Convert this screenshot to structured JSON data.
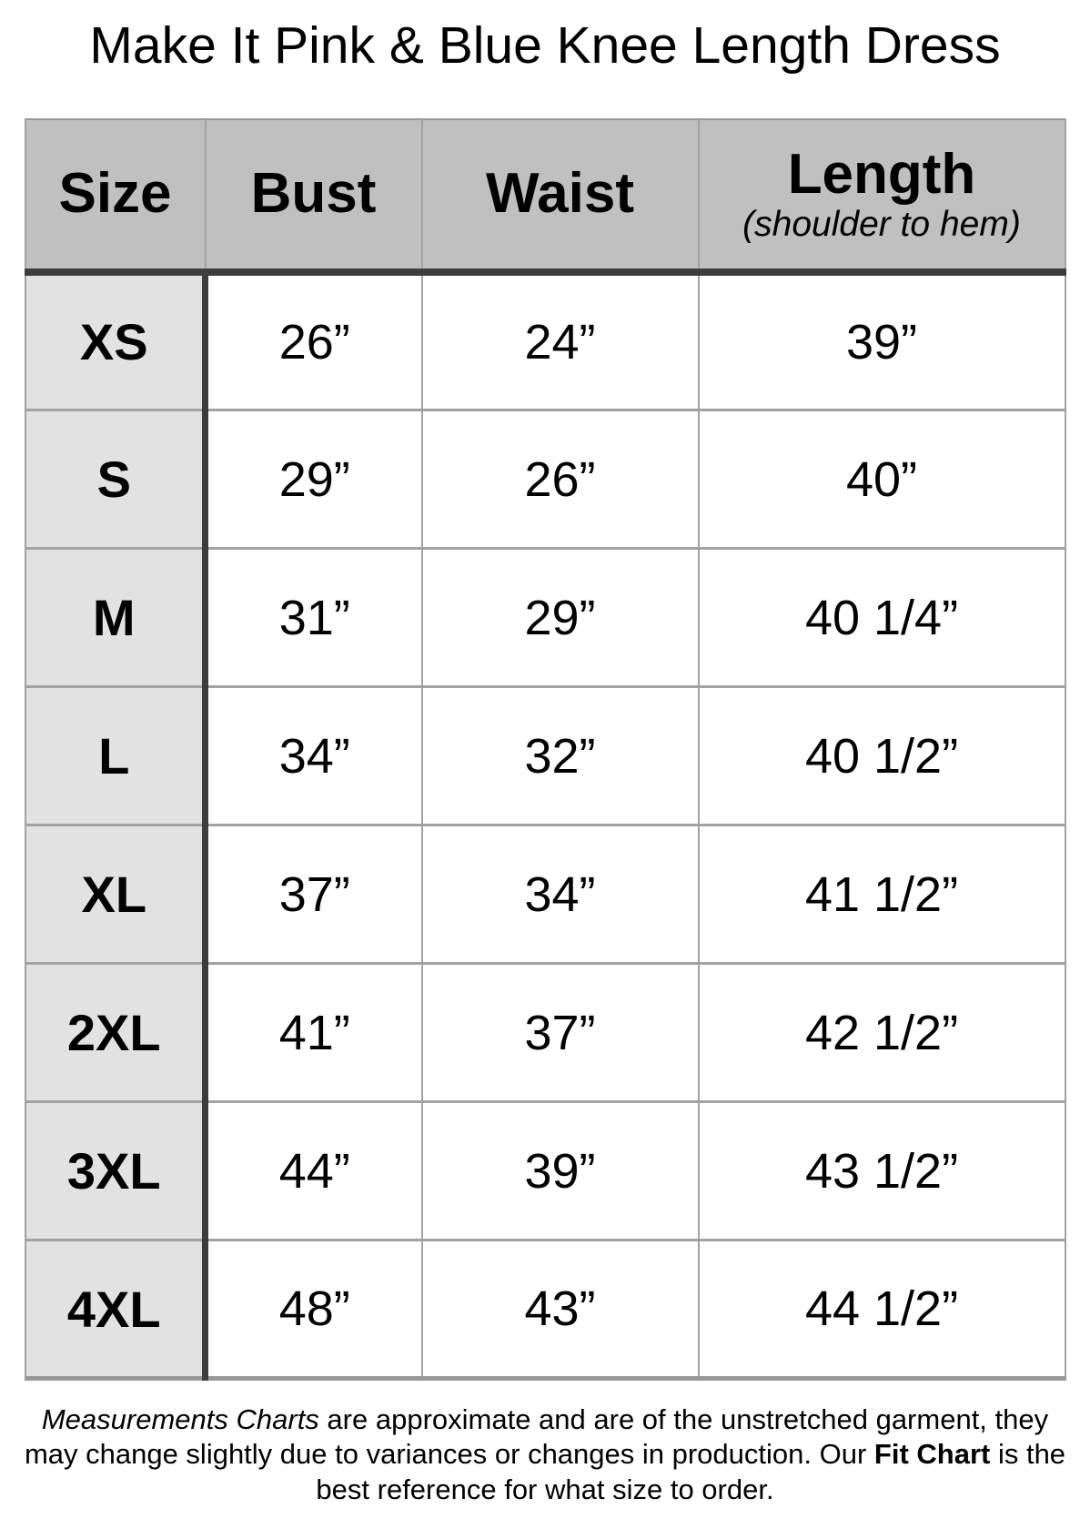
{
  "title": "Make It Pink & Blue Knee Length Dress",
  "chart_data": {
    "type": "table",
    "title": "Make It Pink & Blue Knee Length Dress",
    "columns": [
      "Size",
      "Bust",
      "Waist",
      "Length (shoulder to hem)"
    ],
    "rows": [
      [
        "XS",
        "26”",
        "24”",
        "39”"
      ],
      [
        "S",
        "29”",
        "26”",
        "40”"
      ],
      [
        "M",
        "31”",
        "29”",
        "40 1/4”"
      ],
      [
        "L",
        "34”",
        "32”",
        "40 1/2”"
      ],
      [
        "XL",
        "37”",
        "34”",
        "41 1/2”"
      ],
      [
        "2XL",
        "41”",
        "37”",
        "42 1/2”"
      ],
      [
        "3XL",
        "44”",
        "39”",
        "43 1/2”"
      ],
      [
        "4XL",
        "48”",
        "43”",
        "44 1/2”"
      ]
    ]
  },
  "table": {
    "headers": {
      "size": "Size",
      "bust": "Bust",
      "waist": "Waist",
      "length": "Length",
      "length_subtitle": "(shoulder to hem)"
    },
    "rows": [
      {
        "size": "XS",
        "bust": "26”",
        "waist": "24”",
        "length": "39”"
      },
      {
        "size": "S",
        "bust": "29”",
        "waist": "26”",
        "length": "40”"
      },
      {
        "size": "M",
        "bust": "31”",
        "waist": "29”",
        "length": "40 1/4”"
      },
      {
        "size": "L",
        "bust": "34”",
        "waist": "32”",
        "length": "40 1/2”"
      },
      {
        "size": "XL",
        "bust": "37”",
        "waist": "34”",
        "length": "41 1/2”"
      },
      {
        "size": "2XL",
        "bust": "41”",
        "waist": "37”",
        "length": "42 1/2”"
      },
      {
        "size": "3XL",
        "bust": "44”",
        "waist": "39”",
        "length": "43 1/2”"
      },
      {
        "size": "4XL",
        "bust": "48”",
        "waist": "43”",
        "length": "44 1/2”"
      }
    ]
  },
  "footer": {
    "lead_italic": "Measurements Charts",
    "middle": " are approximate and are of the unstretched garment, they may change slightly due to variances or changes in production. Our ",
    "bold": "Fit Chart",
    "tail": " is the best reference for what size to order."
  },
  "colors": {
    "header_bg": "#c0c0c0",
    "size_column_bg": "#e2e2e2",
    "dark_rule": "#3d3d3d",
    "grid_line": "#a2a2a2",
    "outer_border": "#999999",
    "text": "#000000",
    "page_bg": "#ffffff"
  }
}
